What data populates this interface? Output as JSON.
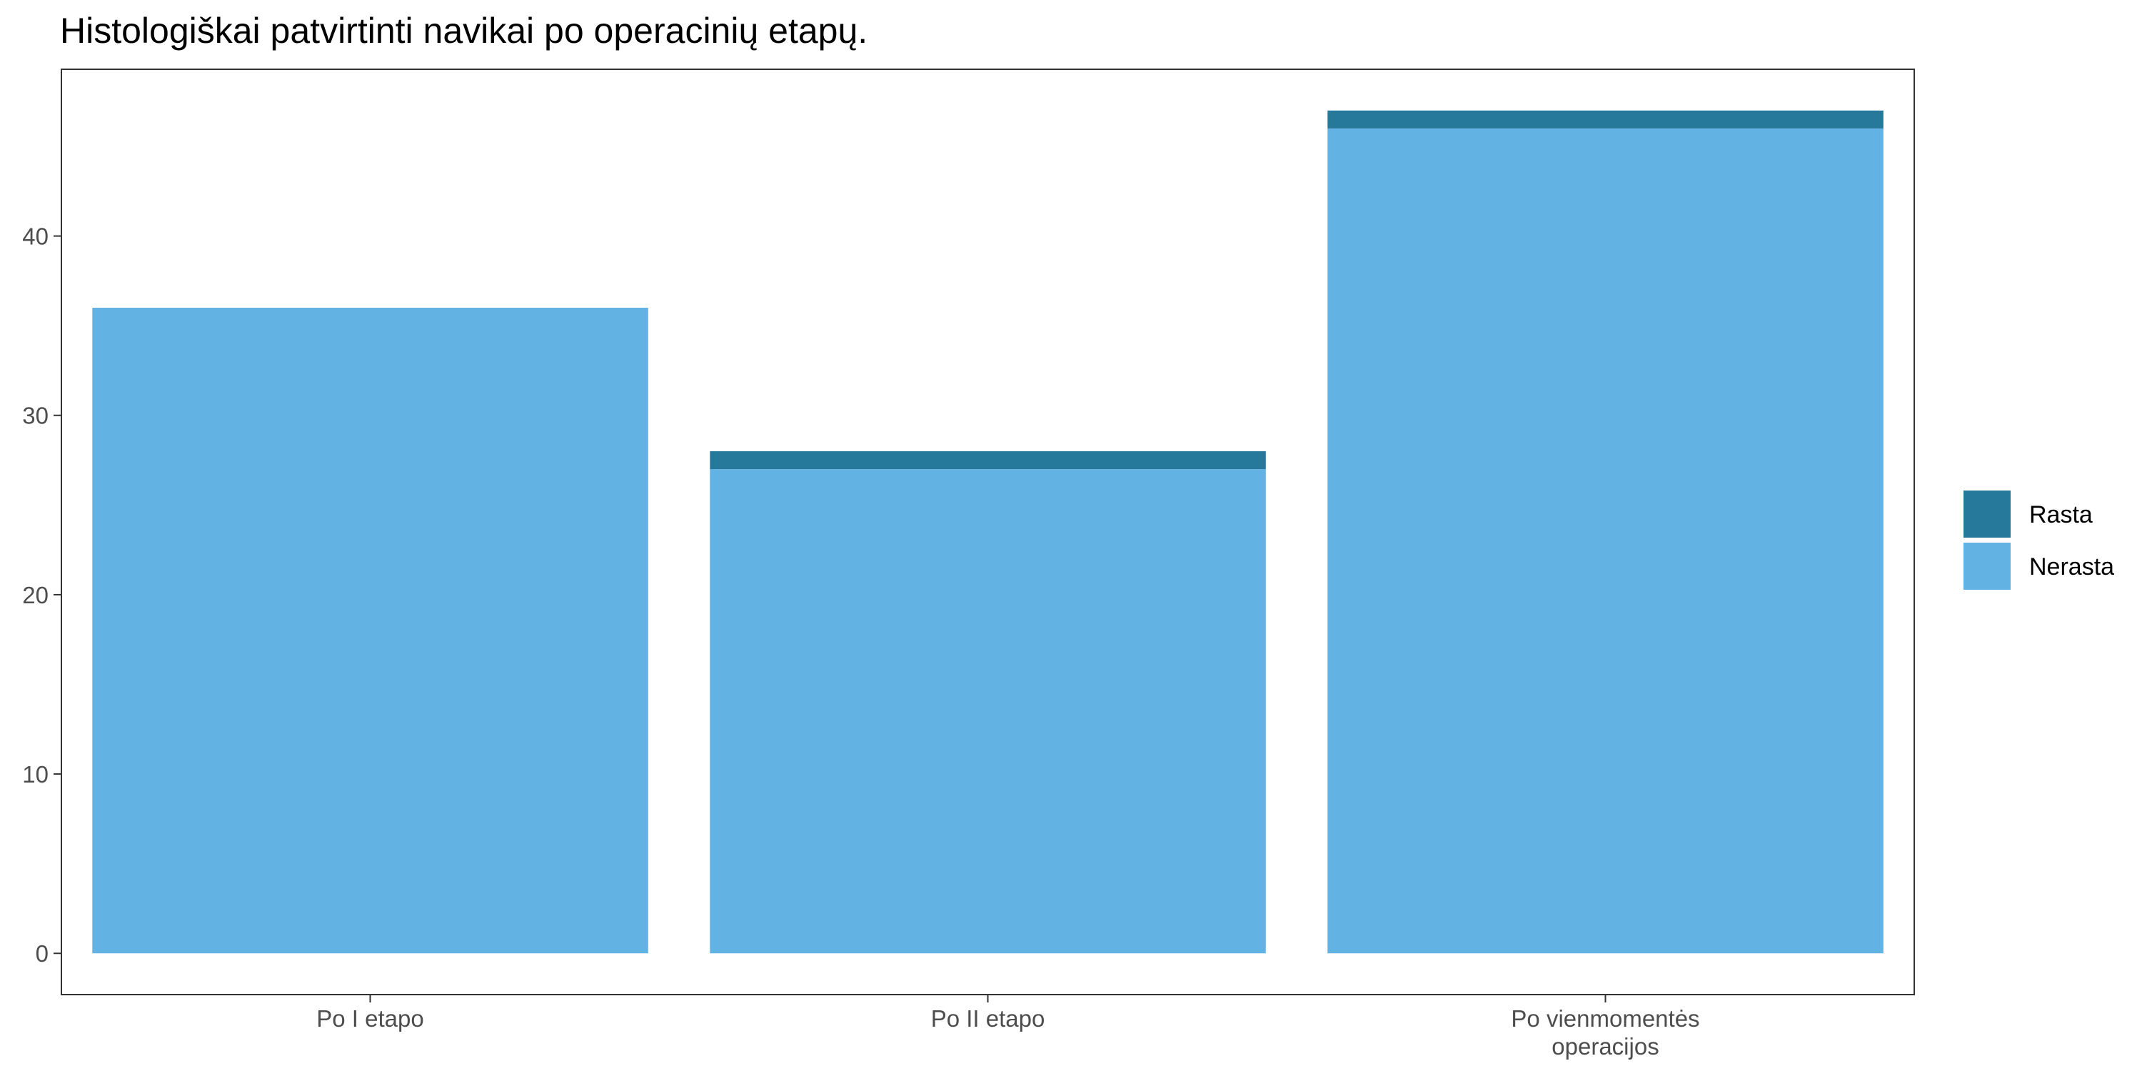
{
  "chart_data": {
    "type": "bar",
    "stacked": true,
    "title": "Histologiškai patvirtinti navikai po operacinių etapų.",
    "xlabel": "",
    "ylabel": "",
    "categories": [
      "Po I etapo",
      "Po II etapo",
      "Po vienmomentės operacijos"
    ],
    "category_lines": [
      [
        "Po I etapo"
      ],
      [
        "Po II etapo"
      ],
      [
        "Po vienmomentės",
        "operacijos"
      ]
    ],
    "series": [
      {
        "name": "Nerasta",
        "values": [
          36,
          27,
          46
        ],
        "color": "#62B2E4"
      },
      {
        "name": "Rasta",
        "values": [
          0,
          1,
          1
        ],
        "color": "#27799C"
      }
    ],
    "legend_order": [
      "Rasta",
      "Nerasta"
    ],
    "legend_position": "right",
    "ylim": [
      -2.3,
      49.3
    ],
    "yticks": [
      0,
      10,
      20,
      30,
      40
    ],
    "grid": false
  }
}
